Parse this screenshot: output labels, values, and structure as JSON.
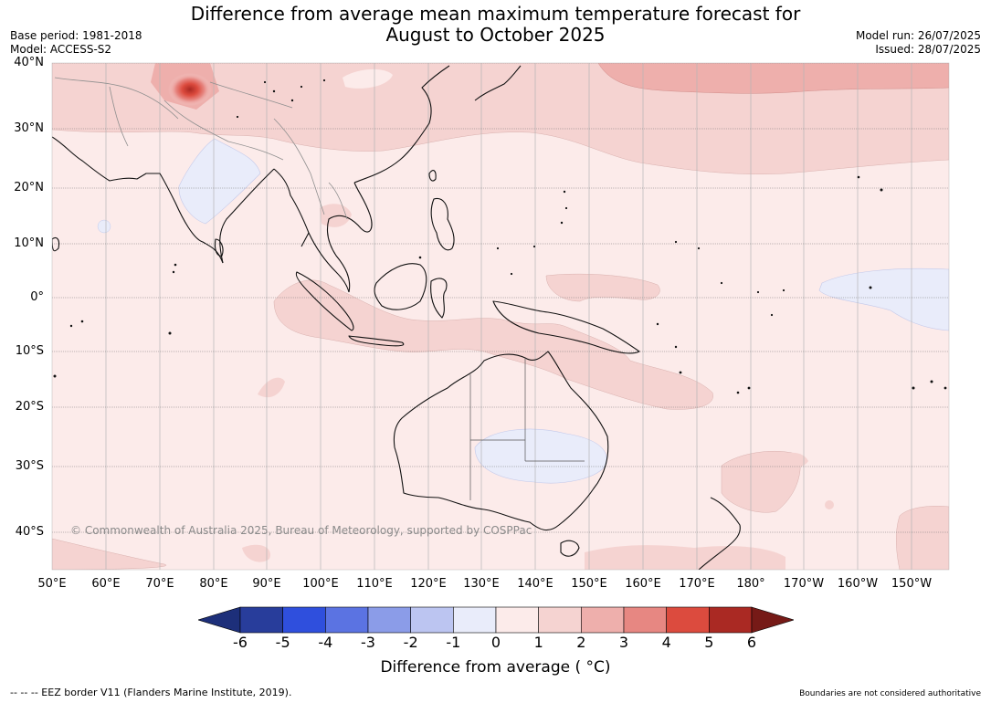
{
  "title": {
    "line1": "Difference from average mean maximum temperature forecast for",
    "line2": "August to October 2025"
  },
  "meta_left": {
    "base_period": "Base period: 1981-2018",
    "model": "Model: ACCESS-S2"
  },
  "meta_right": {
    "model_run": "Model run: 26/07/2025",
    "issued": "Issued: 28/07/2025"
  },
  "map": {
    "lat_labels": [
      "40°N",
      "30°N",
      "20°N",
      "10°N",
      "0°",
      "10°S",
      "20°S",
      "30°S",
      "40°S"
    ],
    "lon_labels": [
      "50°E",
      "60°E",
      "70°E",
      "80°E",
      "90°E",
      "100°E",
      "110°E",
      "120°E",
      "130°E",
      "140°E",
      "150°E",
      "160°E",
      "170°E",
      "180°",
      "170°W",
      "160°W",
      "150°W"
    ],
    "copyright": "© Commonwealth of Australia 2025, Bureau of Meteorology, supported by COSPPac"
  },
  "colorbar": {
    "colors": [
      "#283d9b",
      "#2f4fdd",
      "#5b73e2",
      "#8b9ce8",
      "#bcc5f1",
      "#e9ecfa",
      "#fcebea",
      "#f5d3d1",
      "#eeafac",
      "#e78782",
      "#dc4b3e",
      "#aa2923"
    ],
    "low_extend_color": "#1d2f7a",
    "high_extend_color": "#761a17",
    "tick_labels": [
      "-6",
      "-5",
      "-4",
      "-3",
      "-2",
      "-1",
      "0",
      "1",
      "2",
      "3",
      "4",
      "5",
      "6"
    ],
    "title": "Difference from average ( °C)"
  },
  "footer": {
    "eez": "--  --  -- EEZ border V11 (Flanders Marine Institute, 2019).",
    "disclaimer": "Boundaries are not considered authoritative"
  }
}
